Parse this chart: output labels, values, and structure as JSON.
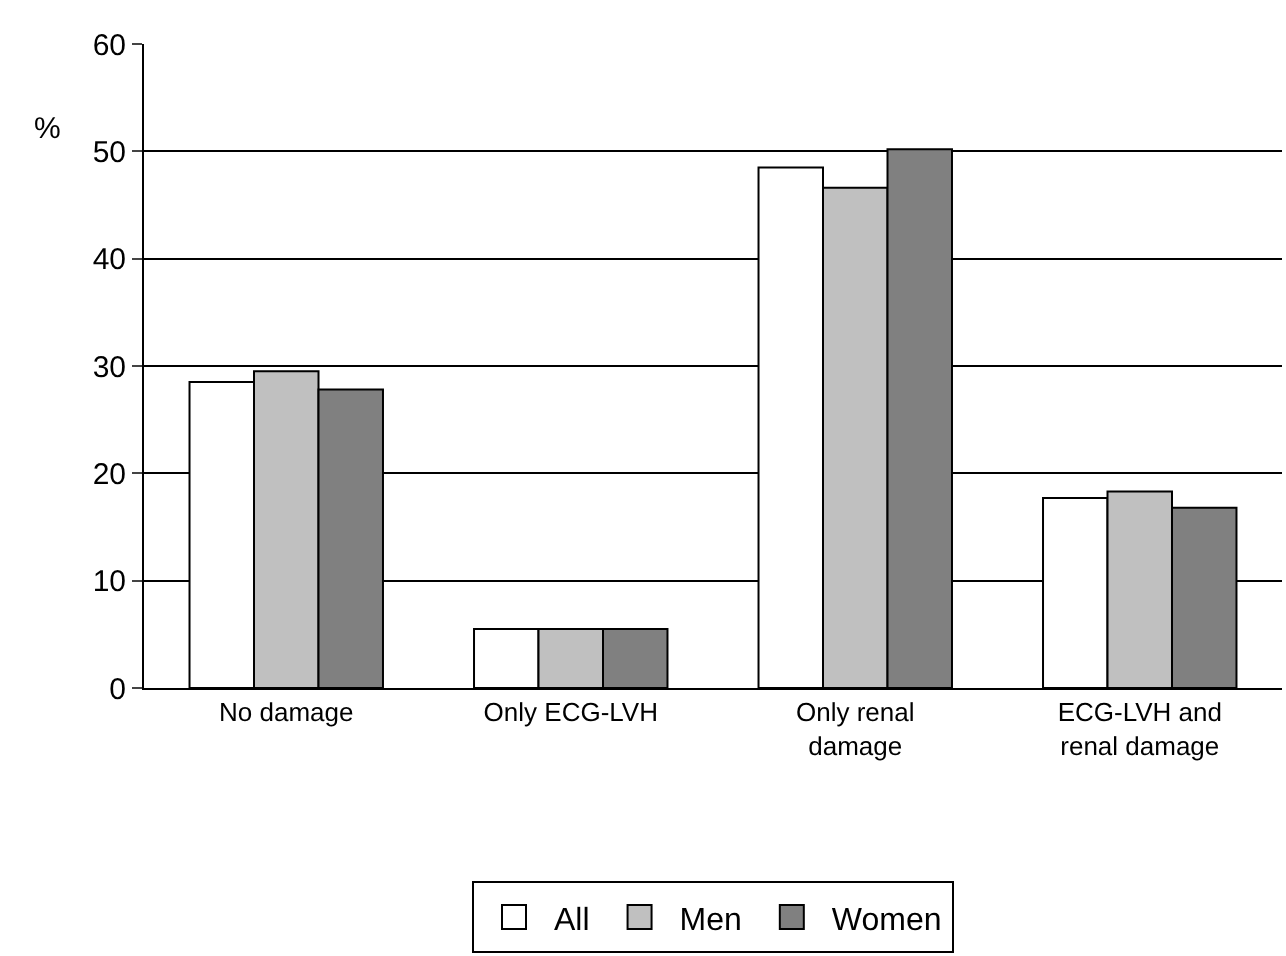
{
  "chart_data": {
    "type": "bar",
    "ylabel": "%",
    "categories": [
      "No damage",
      "Only ECG-LVH",
      "Only renal\ndamage",
      "ECG-LVH and\nrenal damage"
    ],
    "series": [
      {
        "name": "All",
        "color": "#ffffff",
        "values": [
          28.5,
          5.5,
          48.5,
          17.7
        ]
      },
      {
        "name": "Men",
        "color": "#c0c0c0",
        "values": [
          29.5,
          5.5,
          46.6,
          18.3
        ]
      },
      {
        "name": "Women",
        "color": "#808080",
        "values": [
          27.8,
          5.5,
          50.2,
          16.8
        ]
      }
    ],
    "ylim": [
      0,
      60
    ],
    "yticks": [
      0,
      10,
      20,
      30,
      40,
      50,
      60
    ],
    "grid": "y",
    "legend": "bottom"
  }
}
